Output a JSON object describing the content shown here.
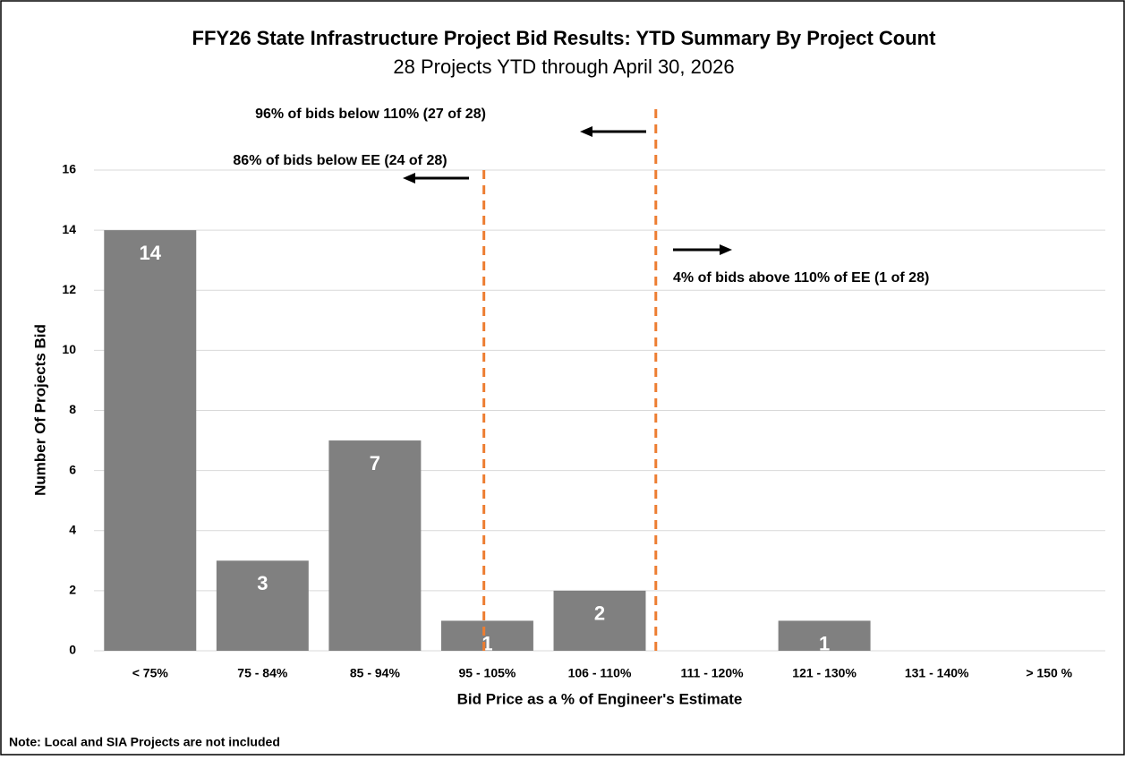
{
  "chart_data": {
    "type": "bar",
    "title": "FFY26 State Infrastructure Project Bid Results:  YTD Summary By Project Count",
    "subtitle": "28 Projects YTD through April 30, 2026",
    "x_label": "Bid Price as a % of Engineer's Estimate",
    "y_label": "Number Of Projects Bid",
    "categories": [
      "< 75%",
      "75 - 84%",
      "85 - 94%",
      "95 - 105%",
      "106 - 110%",
      "111 - 120%",
      "121 - 130%",
      "131 - 140%",
      "> 150 %"
    ],
    "values": [
      14,
      3,
      7,
      1,
      2,
      0,
      1,
      0,
      0
    ],
    "color": "#808080",
    "ylim": [
      0,
      16
    ],
    "yticks": [
      0,
      2,
      4,
      6,
      8,
      10,
      12,
      14,
      16
    ],
    "grid": true,
    "annotations": [
      "96% of bids below 110% (27 of 28)",
      "86% of bids below EE (24 of 28)",
      "4% of bids above 110% of EE (1 of 28)"
    ],
    "note": "Note: Local and SIA Projects are not included"
  }
}
